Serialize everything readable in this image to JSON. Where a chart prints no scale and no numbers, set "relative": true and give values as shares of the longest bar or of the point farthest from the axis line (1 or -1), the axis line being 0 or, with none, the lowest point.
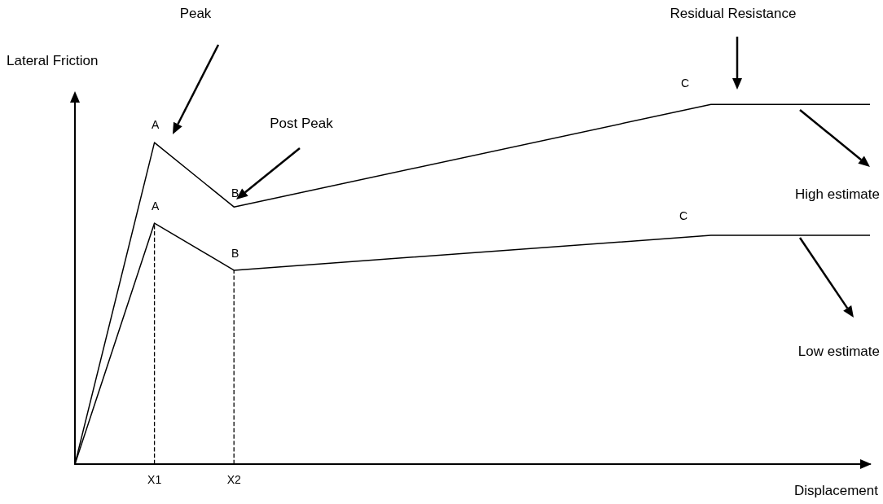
{
  "chart_data": {
    "type": "line",
    "relative": true,
    "xlabel": "Displacement",
    "ylabel": "Lateral Friction",
    "categories": [
      null,
      "X1",
      "X2",
      null,
      null,
      null,
      null,
      null,
      null,
      null,
      null
    ],
    "series": [
      {
        "color": "#000000",
        "values": [
          0,
          0.894,
          0.715,
          null,
          null,
          null,
          null,
          null,
          1,
          null,
          1
        ]
      },
      {
        "color": "#000000",
        "values": [
          0,
          0.67,
          0.539,
          null,
          null,
          null,
          null,
          null,
          0.636,
          null,
          0.636
        ]
      }
    ],
    "ref_lines": [
      {
        "axis": "x",
        "value": "X1",
        "label": null,
        "line_style": "dashed",
        "color": "#000000"
      },
      {
        "axis": "x",
        "value": "X2",
        "label": null,
        "line_style": "dashed",
        "color": "#000000"
      }
    ],
    "annotations": [
      "A",
      "B",
      "C",
      "A",
      "B",
      "C",
      "Peak",
      "Post Peak",
      "Residual Resistance",
      "High estimate",
      "Low estimate"
    ],
    "grid": false,
    "marker": "none",
    "line_style": "solid"
  }
}
